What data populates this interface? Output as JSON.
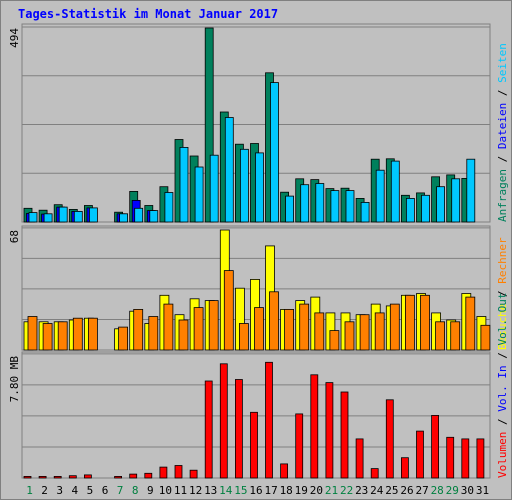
{
  "title": "Tages-Statistik im Monat Januar 2017",
  "colors": {
    "background": "#c0c0c0",
    "grid": "#808080",
    "anfragen": "#00805c",
    "dateien": "#0000ff",
    "seiten": "#00c8ff",
    "besuche": "#ffff00",
    "rechner": "#ff8000",
    "volumen": "#ff0000",
    "weekend_label": "#008040",
    "weekday_label": "#000000",
    "title": "#0000ff"
  },
  "chart_data": [
    {
      "type": "bar",
      "panel": "anfragen",
      "ylabel_max": "494",
      "legend": [
        {
          "name": "Anfragen",
          "color": "#00805c"
        },
        {
          "name": "Dateien",
          "color": "#0000ff"
        },
        {
          "name": "Seiten",
          "color": "#00c8ff"
        }
      ],
      "ylim": [
        0,
        494
      ],
      "categories": [
        "1",
        "2",
        "3",
        "4",
        "5",
        "6",
        "7",
        "8",
        "9",
        "10",
        "11",
        "12",
        "13",
        "14",
        "15",
        "16",
        "17",
        "18",
        "19",
        "20",
        "21",
        "22",
        "23",
        "24",
        "25",
        "26",
        "27",
        "28",
        "29",
        "30",
        "31"
      ],
      "series": [
        {
          "name": "Anfragen",
          "values": [
            35,
            30,
            44,
            32,
            42,
            0,
            25,
            78,
            42,
            90,
            210,
            168,
            494,
            280,
            198,
            200,
            380,
            76,
            110,
            108,
            85,
            86,
            60,
            160,
            161,
            68,
            74,
            115,
            120,
            111,
            0
          ]
        },
        {
          "name": "Dateien",
          "values": [
            22,
            20,
            38,
            27,
            36,
            0,
            21,
            55,
            29,
            0,
            0,
            0,
            0,
            0,
            0,
            0,
            0,
            0,
            0,
            0,
            0,
            0,
            0,
            0,
            0,
            0,
            0,
            0,
            0,
            0,
            0
          ]
        },
        {
          "name": "Seiten",
          "values": [
            24,
            21,
            38,
            27,
            36,
            0,
            21,
            35,
            29,
            75,
            190,
            140,
            170,
            266,
            185,
            176,
            355,
            66,
            95,
            98,
            80,
            80,
            50,
            132,
            155,
            60,
            68,
            90,
            110,
            160,
            0
          ]
        }
      ]
    },
    {
      "type": "bar",
      "panel": "besuche",
      "ylabel_max": "68",
      "legend": [
        {
          "name": "Besuche",
          "color": "#ffff00"
        },
        {
          "name": "Rechner",
          "color": "#ff8000"
        }
      ],
      "ylim": [
        0,
        68
      ],
      "categories": [
        "1",
        "2",
        "3",
        "4",
        "5",
        "6",
        "7",
        "8",
        "9",
        "10",
        "11",
        "12",
        "13",
        "14",
        "15",
        "16",
        "17",
        "18",
        "19",
        "20",
        "21",
        "22",
        "23",
        "24",
        "25",
        "26",
        "27",
        "28",
        "29",
        "30",
        "31"
      ],
      "series": [
        {
          "name": "Besuche",
          "values": [
            16,
            16,
            16,
            17,
            18,
            0,
            12,
            22,
            15,
            31,
            20,
            29,
            28,
            68,
            35,
            40,
            59,
            23,
            28,
            30,
            21,
            21,
            20,
            26,
            25,
            31,
            32,
            21,
            17,
            32,
            19
          ]
        },
        {
          "name": "Rechner",
          "values": [
            19,
            15,
            16,
            18,
            18,
            0,
            13,
            23,
            19,
            26,
            17,
            24,
            28,
            45,
            15,
            24,
            33,
            23,
            26,
            21,
            11,
            16,
            20,
            21,
            26,
            31,
            31,
            16,
            16,
            30,
            14
          ]
        }
      ]
    },
    {
      "type": "bar",
      "panel": "volumen",
      "ylabel_max": "7.80 MB",
      "legend": [
        {
          "name": "Volumen",
          "color": "#ff0000"
        },
        {
          "name": "Vol. In",
          "color": "#0000ff"
        },
        {
          "name": "Vol. Out",
          "color": "#00805c"
        }
      ],
      "ylim": [
        0,
        7.8
      ],
      "categories": [
        "1",
        "2",
        "3",
        "4",
        "5",
        "6",
        "7",
        "8",
        "9",
        "10",
        "11",
        "12",
        "13",
        "14",
        "15",
        "16",
        "17",
        "18",
        "19",
        "20",
        "21",
        "22",
        "23",
        "24",
        "25",
        "26",
        "27",
        "28",
        "29",
        "30",
        "31"
      ],
      "series": [
        {
          "name": "Volumen",
          "values": [
            0.1,
            0.1,
            0.1,
            0.15,
            0.2,
            0,
            0.1,
            0.25,
            0.3,
            0.7,
            0.8,
            0.5,
            6.2,
            7.3,
            6.3,
            4.2,
            7.4,
            0.9,
            4.1,
            6.6,
            6.1,
            5.5,
            2.5,
            0.6,
            5.0,
            1.3,
            3.0,
            4.0,
            2.6,
            2.5,
            2.5
          ]
        }
      ]
    }
  ],
  "weekend_days": [
    "1",
    "7",
    "8",
    "14",
    "15",
    "21",
    "22",
    "28",
    "29"
  ]
}
